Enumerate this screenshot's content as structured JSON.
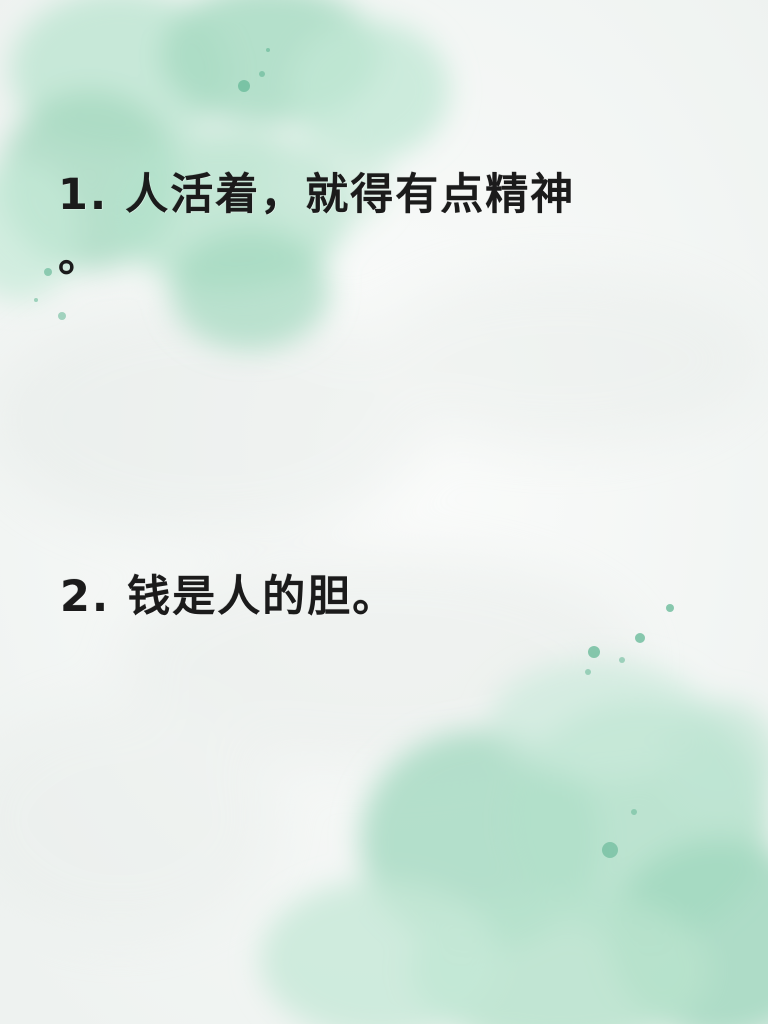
{
  "quotes": {
    "line1_main": "1. 人活着，就得有点精神",
    "line1_tail": "。",
    "line2": "2. 钱是人的胆。"
  },
  "colors": {
    "background": "#f6f8f7",
    "watercolor_green": "#9fd8bd",
    "watercolor_dark": "#5fae8f",
    "text": "#1b1b1b"
  }
}
